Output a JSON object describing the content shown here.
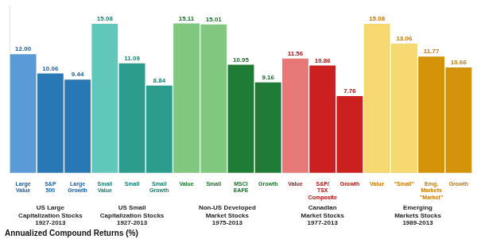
{
  "chart_data": {
    "type": "bar",
    "xlabel": "Annualized Compound Returns (%)",
    "categories": [
      "Large\nValue",
      "S&P\n500",
      "Large\nGrowth",
      "Small\nValue",
      "Small",
      "Small\nGrowth",
      "Value",
      "Small",
      "MSCI\nEAFE",
      "Growth",
      "Value",
      "S&P/\nTSX\nComposite",
      "Growth",
      "Value",
      "\"Small\"",
      "Emg.\nMarkets\n\"Market\"",
      "Growth"
    ],
    "series": [
      {
        "name": "US Large\nCapitalization Stocks\n1927-2013",
        "color": "#1a5ea0",
        "values": [
          12.0,
          10.06,
          9.44,
          null,
          null,
          null,
          null,
          null,
          null,
          null,
          null,
          null,
          null,
          null,
          null,
          null,
          null
        ],
        "value_labels": [
          "12.00",
          "10.06",
          "9.44",
          null,
          null,
          null,
          null,
          null,
          null,
          null,
          null,
          null,
          null,
          null,
          null,
          null,
          null
        ],
        "colors": [
          "#5b9bd5",
          "#2878b5",
          "#2878b5",
          null,
          null,
          null,
          null,
          null,
          null,
          null,
          null,
          null,
          null,
          null,
          null,
          null,
          null
        ]
      },
      {
        "name": "US Small\nCapitalization Stocks\n1927-2013",
        "color": "#1a7a6e",
        "values": [
          null,
          null,
          null,
          15.08,
          11.09,
          8.84,
          null,
          null,
          null,
          null,
          null,
          null,
          null,
          null,
          null,
          null,
          null
        ],
        "value_labels": [
          null,
          null,
          null,
          "15.08",
          "11.09",
          "8.84",
          null,
          null,
          null,
          null,
          null,
          null,
          null,
          null,
          null,
          null,
          null
        ],
        "colors": [
          null,
          null,
          null,
          "#60c8ba",
          "#2a9d8f",
          "#2a9d8f",
          null,
          null,
          null,
          null,
          null,
          null,
          null,
          null,
          null,
          null,
          null
        ]
      },
      {
        "name": "Non-US Developed\nMarket Stocks\n1975-2013",
        "color": "#1a6e2a",
        "values": [
          null,
          null,
          null,
          null,
          null,
          null,
          15.11,
          15.01,
          10.95,
          9.16,
          null,
          null,
          null,
          null,
          null,
          null,
          null
        ],
        "value_labels": [
          null,
          null,
          null,
          null,
          null,
          null,
          "15.11",
          "15.01",
          "10.95",
          "9.16",
          null,
          null,
          null,
          null,
          null,
          null,
          null
        ],
        "colors": [
          null,
          null,
          null,
          null,
          null,
          null,
          "#80c880",
          "#80c880",
          "#1e7a35",
          "#1e7a35",
          null,
          null,
          null,
          null,
          null,
          null,
          null
        ]
      },
      {
        "name": "Canadian\nMarket Stocks\n1977-2013",
        "color": "#aa1010",
        "values": [
          null,
          null,
          null,
          null,
          null,
          null,
          null,
          null,
          null,
          null,
          11.56,
          10.86,
          7.76,
          null,
          null,
          null,
          null
        ],
        "value_labels": [
          null,
          null,
          null,
          null,
          null,
          null,
          null,
          null,
          null,
          null,
          "11.56",
          "10.86",
          "7.76",
          null,
          null,
          null,
          null
        ],
        "colors": [
          null,
          null,
          null,
          null,
          null,
          null,
          null,
          null,
          null,
          null,
          "#e87878",
          "#cc2020",
          "#cc2020",
          null,
          null,
          null,
          null
        ]
      },
      {
        "name": "Emerging\nMarkets Stocks\n1989-2013",
        "color": "#c07800",
        "values": [
          null,
          null,
          null,
          null,
          null,
          null,
          null,
          null,
          null,
          null,
          null,
          null,
          null,
          15.08,
          13.06,
          11.77,
          10.66
        ],
        "value_labels": [
          null,
          null,
          null,
          null,
          null,
          null,
          null,
          null,
          null,
          null,
          null,
          null,
          null,
          "15.08",
          "13.06",
          "11.77",
          "10.66"
        ],
        "colors": [
          null,
          null,
          null,
          null,
          null,
          null,
          null,
          null,
          null,
          null,
          null,
          null,
          null,
          "#f5d870",
          "#f5d870",
          "#d4920a",
          "#d4920a"
        ]
      }
    ],
    "ylim": [
      0,
      17.0
    ],
    "grid": false,
    "tick_labels": "x",
    "data_labels": true
  }
}
